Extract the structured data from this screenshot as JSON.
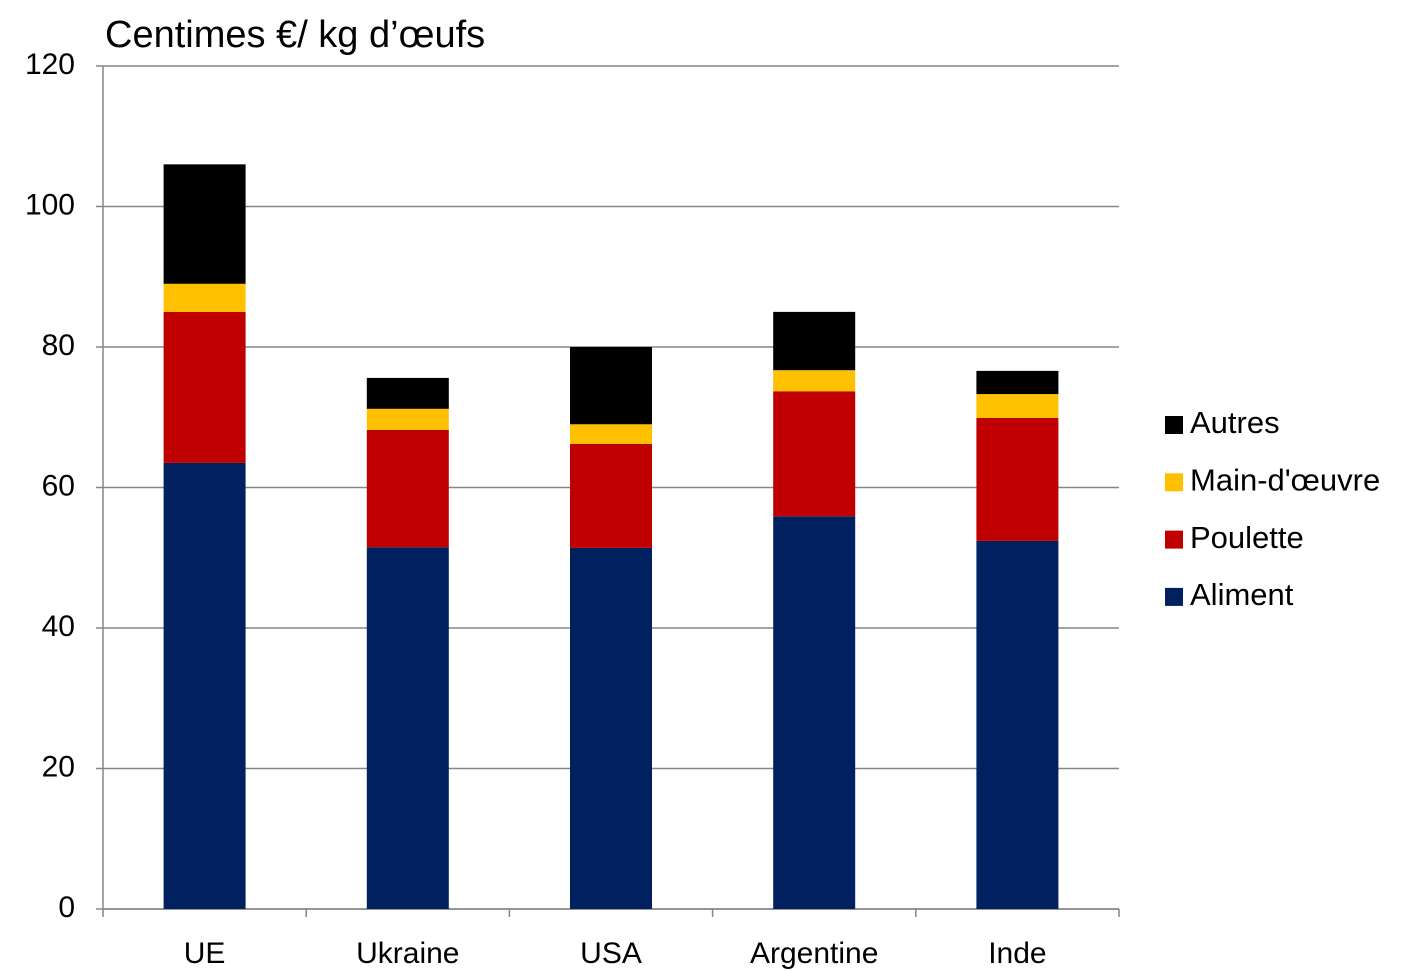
{
  "chart_data": {
    "type": "stacked_bar",
    "title": "Centimes €/ kg d’œufs",
    "categories": [
      "UE",
      "Ukraine",
      "USA",
      "Argentine",
      "Inde"
    ],
    "series": [
      {
        "name": "Aliment",
        "color": "#002060",
        "values": [
          63.5,
          51.5,
          51.4,
          55.9,
          52.4
        ]
      },
      {
        "name": "Poulette",
        "color": "#c00000",
        "values": [
          21.5,
          16.7,
          14.8,
          17.8,
          17.5
        ]
      },
      {
        "name": "Main-d'œuvre",
        "color": "#ffc000",
        "values": [
          4.0,
          3.0,
          2.8,
          3.0,
          3.4
        ]
      },
      {
        "name": "Autres",
        "color": "#000000",
        "values": [
          17.0,
          4.4,
          11.0,
          8.3,
          3.3
        ]
      }
    ],
    "ylim": [
      0,
      120
    ],
    "yticks": [
      0,
      20,
      40,
      60,
      80,
      100,
      120
    ],
    "grid": true,
    "legend": "right"
  }
}
